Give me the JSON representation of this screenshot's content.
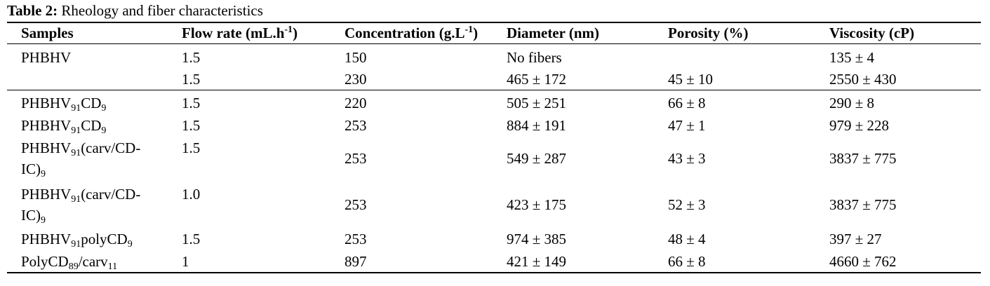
{
  "caption": {
    "label": "Table 2:",
    "text": " Rheology and fiber characteristics"
  },
  "header": {
    "samples": "Samples",
    "flow_rate_pre": "Flow rate (mL.h",
    "flow_rate_sup": "-1",
    "flow_rate_post": ")",
    "concentration_pre": "Concentration (g.L",
    "concentration_sup": "-1",
    "concentration_post": ")",
    "diameter": "Diameter (nm)",
    "porosity": "Porosity (%)",
    "viscosity": "Viscosity (cP)"
  },
  "rows": [
    {
      "sample": "PHBHV",
      "flow": "1.5",
      "conc": "150",
      "diameter": "No fibers",
      "porosity": "",
      "viscosity": "135 ± 4"
    },
    {
      "sample": "",
      "flow": "1.5",
      "conc": "230",
      "diameter": "465 ± 172",
      "porosity": "45 ± 10",
      "viscosity": "2550 ± 430"
    },
    {
      "s1": "PHBHV",
      "s1_sub": "91",
      "s2": "CD",
      "s2_sub": "9",
      "flow": "1.5",
      "conc": "220",
      "diameter": "505 ± 251",
      "porosity": "66 ± 8",
      "viscosity": "290 ± 8"
    },
    {
      "s1": "PHBHV",
      "s1_sub": "91",
      "s2": "CD",
      "s2_sub": "9",
      "flow": "1.5",
      "conc": "253",
      "diameter": "884 ± 191",
      "porosity": "47 ± 1",
      "viscosity": "979 ± 228"
    },
    {
      "s1": "PHBHV",
      "s1_sub": "91",
      "s2": "(carv/CD-",
      "line2": "IC)",
      "line2_sub": "9",
      "flow": "1.5",
      "conc": "253",
      "diameter": "549 ± 287",
      "porosity": "43 ± 3",
      "viscosity": "3837 ± 775"
    },
    {
      "s1": "PHBHV",
      "s1_sub": "91",
      "s2": "(carv/CD-",
      "line2": "IC)",
      "line2_sub": "9",
      "flow": "1.0",
      "conc": "253",
      "diameter": "423 ± 175",
      "porosity": "52 ± 3",
      "viscosity": "3837 ± 775"
    },
    {
      "s1": "PHBHV",
      "s1_sub": "91",
      "s2": "polyCD",
      "s2_sub": "9",
      "flow": "1.5",
      "conc": "253",
      "diameter": "974 ± 385",
      "porosity": "48 ± 4",
      "viscosity": "397 ± 27"
    },
    {
      "s1": "PolyCD",
      "s1_sub": "89",
      "s2": "/carv",
      "s2_sub": "11",
      "flow": "1",
      "conc": "897",
      "diameter": "421 ± 149",
      "porosity": "66 ± 8",
      "viscosity": "4660 ± 762"
    }
  ]
}
